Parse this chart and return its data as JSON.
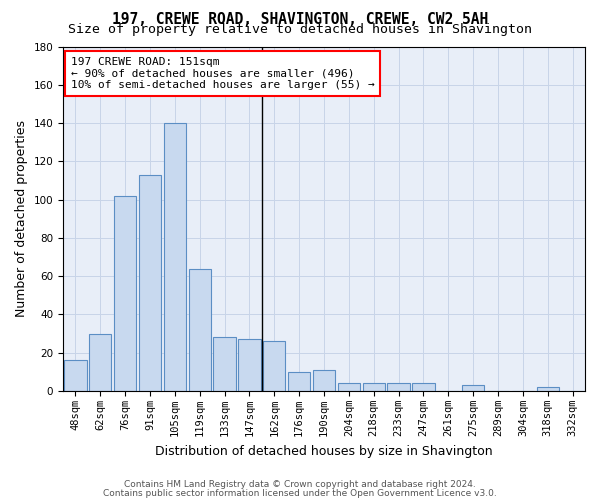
{
  "title": "197, CREWE ROAD, SHAVINGTON, CREWE, CW2 5AH",
  "subtitle": "Size of property relative to detached houses in Shavington",
  "xlabel": "Distribution of detached houses by size in Shavington",
  "ylabel": "Number of detached properties",
  "bar_labels": [
    "48sqm",
    "62sqm",
    "76sqm",
    "91sqm",
    "105sqm",
    "119sqm",
    "133sqm",
    "147sqm",
    "162sqm",
    "176sqm",
    "190sqm",
    "204sqm",
    "218sqm",
    "233sqm",
    "247sqm",
    "261sqm",
    "275sqm",
    "289sqm",
    "304sqm",
    "318sqm",
    "332sqm"
  ],
  "bar_values": [
    16,
    30,
    102,
    113,
    140,
    64,
    28,
    27,
    26,
    10,
    11,
    4,
    4,
    4,
    4,
    0,
    3,
    0,
    0,
    2,
    0
  ],
  "bar_color": "#c8d9ef",
  "bar_edge_color": "#5b8ec4",
  "vline_x": 7.5,
  "annotation_line1": "197 CREWE ROAD: 151sqm",
  "annotation_line2": "← 90% of detached houses are smaller (496)",
  "annotation_line3": "10% of semi-detached houses are larger (55) →",
  "ylim": [
    0,
    180
  ],
  "yticks": [
    0,
    20,
    40,
    60,
    80,
    100,
    120,
    140,
    160,
    180
  ],
  "grid_color": "#c8d4e8",
  "background_color": "#e8eef8",
  "footer_line1": "Contains HM Land Registry data © Crown copyright and database right 2024.",
  "footer_line2": "Contains public sector information licensed under the Open Government Licence v3.0.",
  "title_fontsize": 10.5,
  "subtitle_fontsize": 9.5,
  "ylabel_fontsize": 9,
  "xlabel_fontsize": 9,
  "tick_fontsize": 7.5,
  "annot_fontsize": 8,
  "footer_fontsize": 6.5
}
